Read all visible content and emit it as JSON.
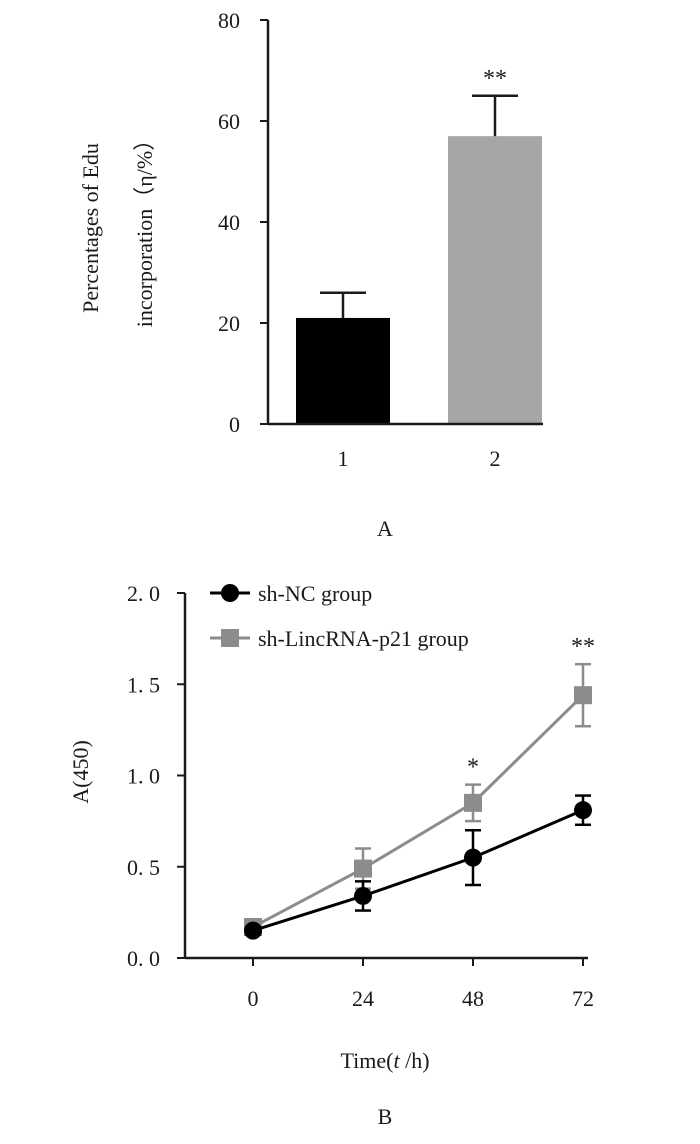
{
  "chart_data": [
    {
      "panel": "A",
      "type": "bar",
      "categories": [
        "1",
        "2"
      ],
      "values": [
        21,
        57
      ],
      "errors": [
        5,
        8
      ],
      "colors": [
        "#000000",
        "#a6a6a6"
      ],
      "annotations": [
        "",
        "**"
      ],
      "ylabel_line1": "Percentages of Edu",
      "ylabel_line2": "incorporation（η/%）",
      "ylim": [
        0,
        80
      ],
      "yticks": [
        "0",
        "20",
        "40",
        "60",
        "80"
      ],
      "ytick_values": [
        0,
        20,
        40,
        60,
        80
      ]
    },
    {
      "panel": "B",
      "type": "line",
      "x": [
        0,
        24,
        48,
        72
      ],
      "xticks": [
        "0",
        "24",
        "48",
        "72"
      ],
      "xlabel_prefix": "Time(",
      "xlabel_var": "t",
      "xlabel_suffix": " /h)",
      "ylabel": "A(450)",
      "ylim": [
        0,
        2.0
      ],
      "yticks": [
        "0. 0",
        "0. 5",
        "1. 0",
        "1. 5",
        "2. 0"
      ],
      "ytick_values": [
        0,
        0.5,
        1.0,
        1.5,
        2.0
      ],
      "legend_position": "top-left",
      "series": [
        {
          "name": "sh-NC group",
          "marker": "circle",
          "color": "#000000",
          "values": [
            0.15,
            0.34,
            0.55,
            0.81
          ],
          "errors": [
            0.02,
            0.08,
            0.15,
            0.08
          ]
        },
        {
          "name": "sh-LincRNA-p21 group",
          "marker": "square",
          "color": "#8c8c8c",
          "values": [
            0.17,
            0.49,
            0.85,
            1.44
          ],
          "errors": [
            0.02,
            0.11,
            0.1,
            0.17
          ]
        }
      ],
      "annotations": [
        {
          "x": 48,
          "text": "*"
        },
        {
          "x": 72,
          "text": "**"
        }
      ]
    }
  ]
}
